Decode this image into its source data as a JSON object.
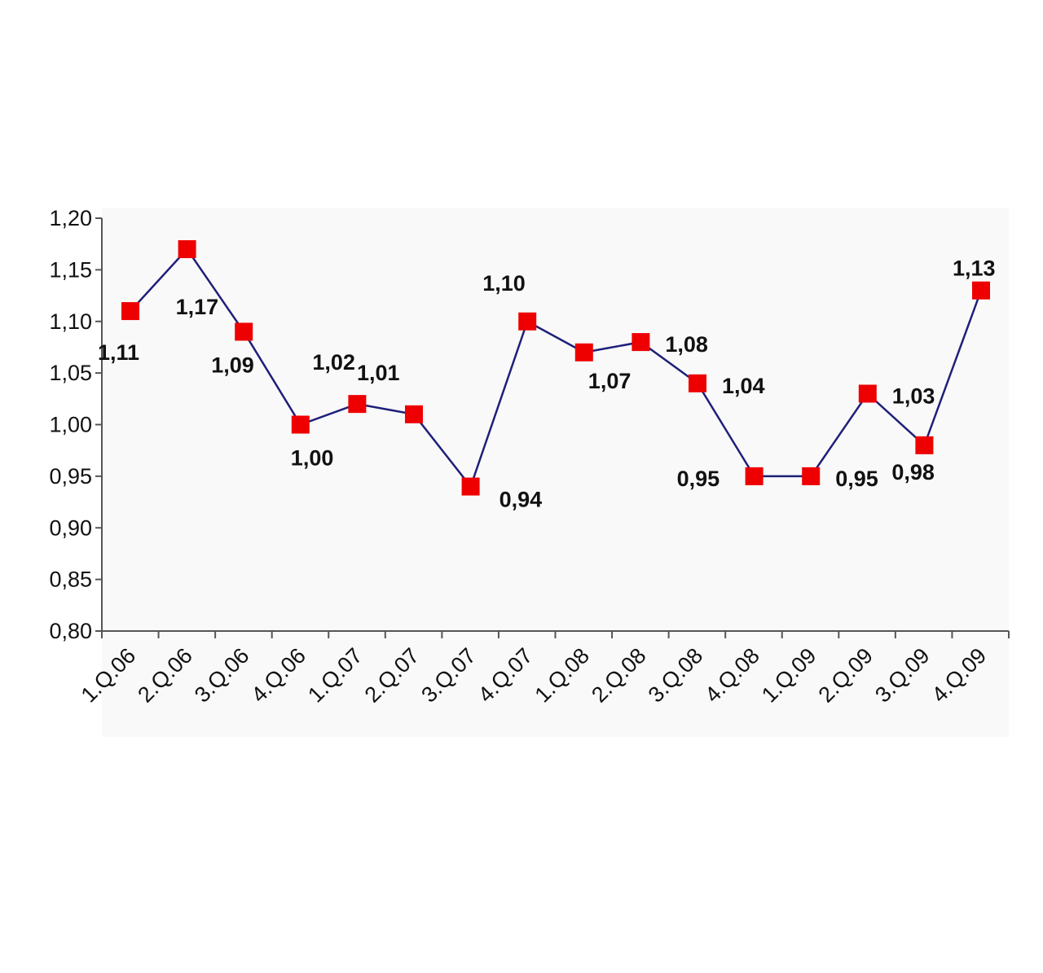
{
  "chart_data": {
    "type": "line",
    "title": "",
    "xlabel": "",
    "ylabel": "",
    "categories": [
      "1.Q.06",
      "2.Q.06",
      "3.Q.06",
      "4.Q.06",
      "1.Q.07",
      "2.Q.07",
      "3.Q.07",
      "4.Q.07",
      "1.Q.08",
      "2.Q.08",
      "3.Q.08",
      "4.Q.08",
      "1.Q.09",
      "2.Q.09",
      "3.Q.09",
      "4.Q.09"
    ],
    "values": [
      1.11,
      1.17,
      1.09,
      1.0,
      1.02,
      1.01,
      0.94,
      1.1,
      1.07,
      1.08,
      1.04,
      0.95,
      0.95,
      1.03,
      0.98,
      1.13
    ],
    "value_labels": [
      "1,11",
      "1,17",
      "1,09",
      "1,00",
      "1,02",
      "1,01",
      "0,94",
      "1,10",
      "1,07",
      "1,08",
      "1,04",
      "0,95",
      "0,95",
      "1,03",
      "0,98",
      "1,13"
    ],
    "ylim": [
      0.8,
      1.2
    ],
    "yticks": [
      "0,80",
      "0,85",
      "0,90",
      "0,95",
      "1,00",
      "1,05",
      "1,10",
      "1,15",
      "1,20"
    ],
    "grid": false,
    "legend": "none",
    "colors": {
      "line": "#1f1f7a",
      "marker": "#ee0000",
      "plot_background": "#f9f9f9"
    }
  }
}
